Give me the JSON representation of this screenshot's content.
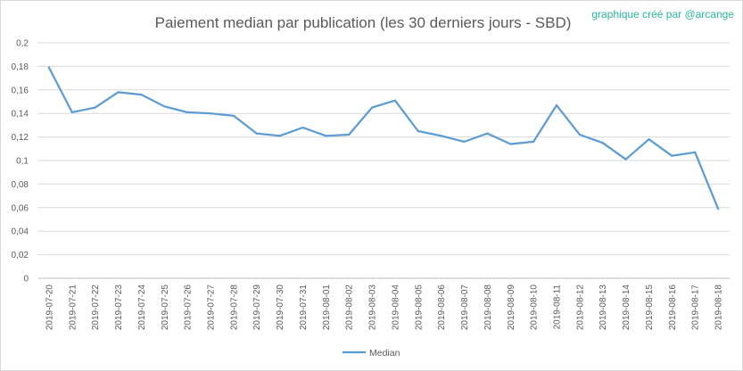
{
  "chart_data": {
    "type": "line",
    "title": "Paiement median par publication (les 30 derniers jours - SBD)",
    "credit": "graphique créé par @arcange",
    "xlabel": "",
    "ylabel": "",
    "ylim": [
      0,
      0.2
    ],
    "y_ticks": [
      "0",
      "0,02",
      "0,04",
      "0,06",
      "0,08",
      "0,1",
      "0,12",
      "0,14",
      "0,16",
      "0,18",
      "0,2"
    ],
    "grid": true,
    "legend_position": "bottom",
    "line_color": "#5b9bd5",
    "categories": [
      "2019-07-20",
      "2019-07-21",
      "2019-07-22",
      "2019-07-23",
      "2019-07-24",
      "2019-07-25",
      "2019-07-26",
      "2019-07-27",
      "2019-07-28",
      "2019-07-29",
      "2019-07-30",
      "2019-07-31",
      "2019-08-01",
      "2019-08-02",
      "2019-08-03",
      "2019-08-04",
      "2019-08-05",
      "2019-08-06",
      "2019-08-07",
      "2019-08-08",
      "2019-08-09",
      "2019-08-10",
      "2019-08-11",
      "2019-08-12",
      "2019-08-13",
      "2019-08-14",
      "2019-08-15",
      "2019-08-16",
      "2019-08-17",
      "2019-08-18"
    ],
    "series": [
      {
        "name": "Median",
        "values": [
          0.179,
          0.141,
          0.145,
          0.158,
          0.156,
          0.146,
          0.141,
          0.14,
          0.138,
          0.123,
          0.121,
          0.128,
          0.121,
          0.122,
          0.145,
          0.151,
          0.125,
          0.121,
          0.116,
          0.123,
          0.114,
          0.116,
          0.147,
          0.122,
          0.115,
          0.101,
          0.118,
          0.104,
          0.107,
          0.059
        ]
      }
    ]
  }
}
